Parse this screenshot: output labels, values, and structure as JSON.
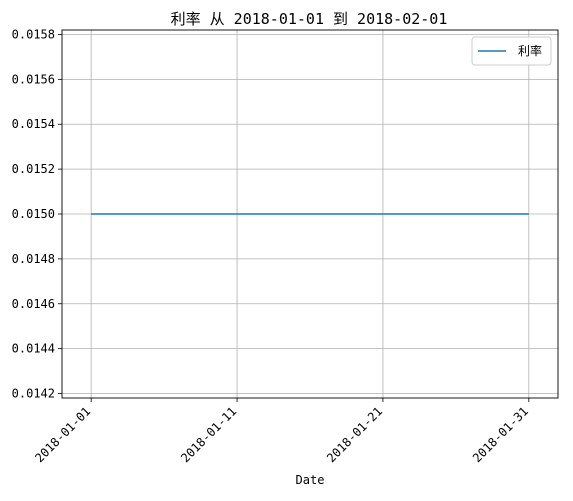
{
  "chart_data": {
    "type": "line",
    "title": "利率 从 2018-01-01 到 2018-02-01",
    "xlabel": "Date",
    "ylabel": "",
    "x": [
      "2018-01-01",
      "2018-01-31"
    ],
    "series": [
      {
        "name": "利率",
        "color": "#1f77b4",
        "values": [
          0.015,
          0.015
        ]
      }
    ],
    "xlim": [
      "2017-12-30",
      "2018-02-02"
    ],
    "ylim": [
      0.01418,
      0.01582
    ],
    "x_ticks": [
      "2018-01-01",
      "2018-01-11",
      "2018-01-21",
      "2018-01-31"
    ],
    "y_ticks": [
      "0.0142",
      "0.0144",
      "0.0146",
      "0.0148",
      "0.0150",
      "0.0152",
      "0.0154",
      "0.0156",
      "0.0158"
    ],
    "grid": true,
    "legend_position": "top-right"
  }
}
